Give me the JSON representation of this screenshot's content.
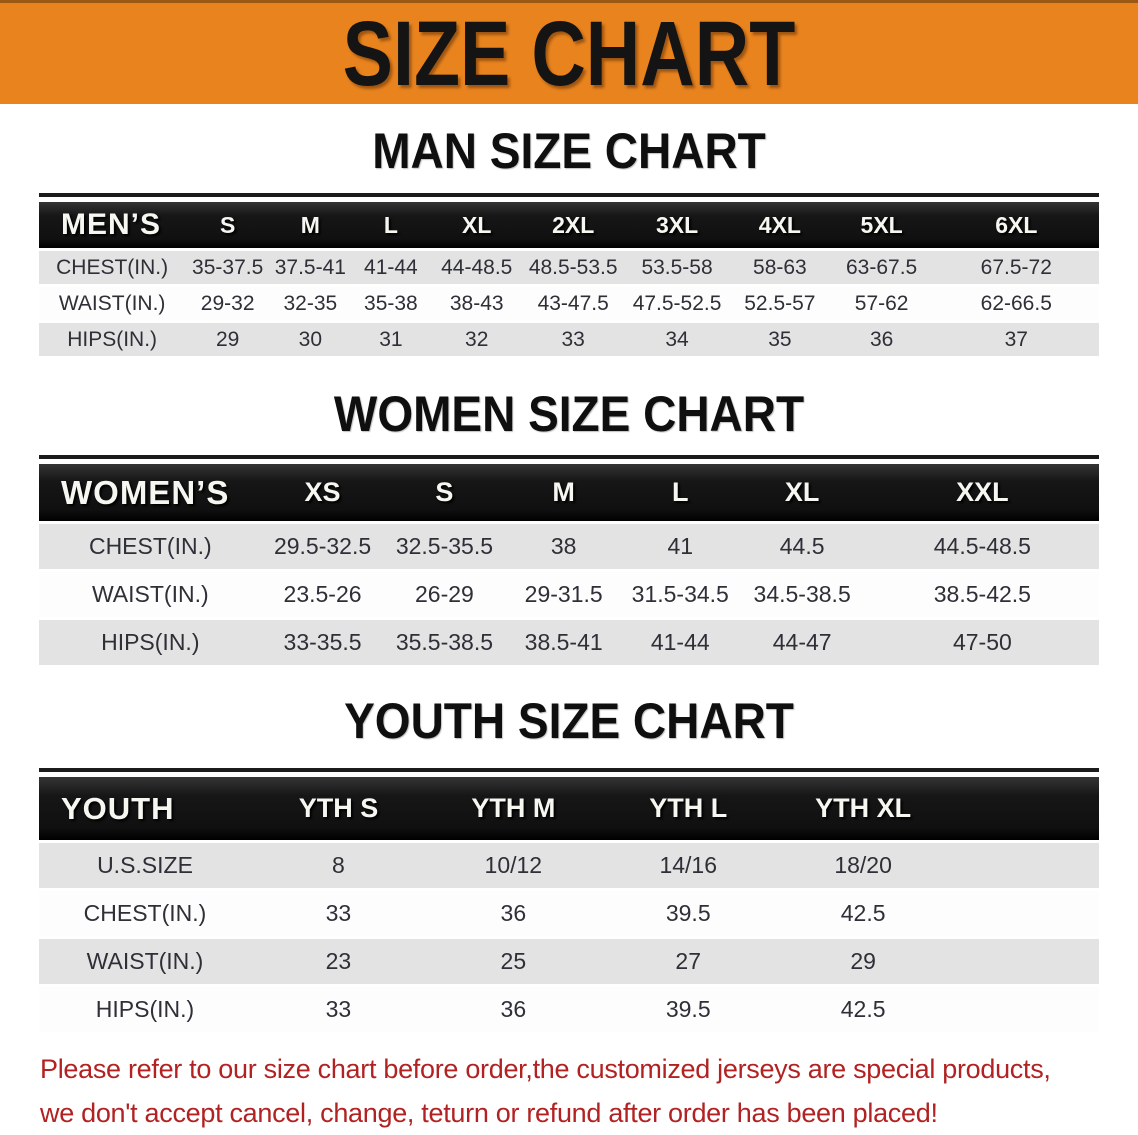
{
  "banner": {
    "title": "SIZE CHART",
    "bg_color": "#E8831E"
  },
  "sections": [
    {
      "id": "men",
      "heading": "MAN SIZE CHART",
      "table": {
        "corner_label": "MEN’S",
        "columns": [
          "S",
          "M",
          "L",
          "XL",
          "2XL",
          "3XL",
          "4XL",
          "5XL",
          "6XL"
        ],
        "rows": [
          {
            "label": "CHEST(IN.)",
            "values": [
              "35-37.5",
              "37.5-41",
              "41-44",
              "44-48.5",
              "48.5-53.5",
              "53.5-58",
              "58-63",
              "63-67.5",
              "67.5-72"
            ]
          },
          {
            "label": "WAIST(IN.)",
            "values": [
              "29-32",
              "32-35",
              "35-38",
              "38-43",
              "43-47.5",
              "47.5-52.5",
              "52.5-57",
              "57-62",
              "62-66.5"
            ]
          },
          {
            "label": "HIPS(IN.)",
            "values": [
              "29",
              "30",
              "31",
              "32",
              "33",
              "34",
              "35",
              "36",
              "37"
            ]
          }
        ]
      }
    },
    {
      "id": "women",
      "heading": "WOMEN SIZE CHART",
      "table": {
        "corner_label": "WOMEN’S",
        "columns": [
          "XS",
          "S",
          "M",
          "L",
          "XL",
          "XXL"
        ],
        "rows": [
          {
            "label": "CHEST(IN.)",
            "values": [
              "29.5-32.5",
              "32.5-35.5",
              "38",
              "41",
              "44.5",
              "44.5-48.5"
            ]
          },
          {
            "label": "WAIST(IN.)",
            "values": [
              "23.5-26",
              "26-29",
              "29-31.5",
              "31.5-34.5",
              "34.5-38.5",
              "38.5-42.5"
            ]
          },
          {
            "label": "HIPS(IN.)",
            "values": [
              "33-35.5",
              "35.5-38.5",
              "38.5-41",
              "41-44",
              "44-47",
              "47-50"
            ]
          }
        ]
      }
    },
    {
      "id": "youth",
      "heading": "YOUTH SIZE CHART",
      "table": {
        "corner_label": "YOUTH",
        "columns": [
          "YTH S",
          "YTH M",
          "YTH L",
          "YTH XL"
        ],
        "rows": [
          {
            "label": "U.S.SIZE",
            "values": [
              "8",
              "10/12",
              "14/16",
              "18/20"
            ]
          },
          {
            "label": "CHEST(IN.)",
            "values": [
              "33",
              "36",
              "39.5",
              "42.5"
            ]
          },
          {
            "label": "WAIST(IN.)",
            "values": [
              "23",
              "25",
              "27",
              "29"
            ]
          },
          {
            "label": "HIPS(IN.)",
            "values": [
              "33",
              "36",
              "39.5",
              "42.5"
            ]
          }
        ]
      }
    }
  ],
  "footer_note": {
    "color": "#B22222",
    "lines": [
      "Please refer to our size chart before order,the customized jerseys are special products,",
      "we don't accept cancel, change, teturn or refund after order has been placed!"
    ]
  }
}
